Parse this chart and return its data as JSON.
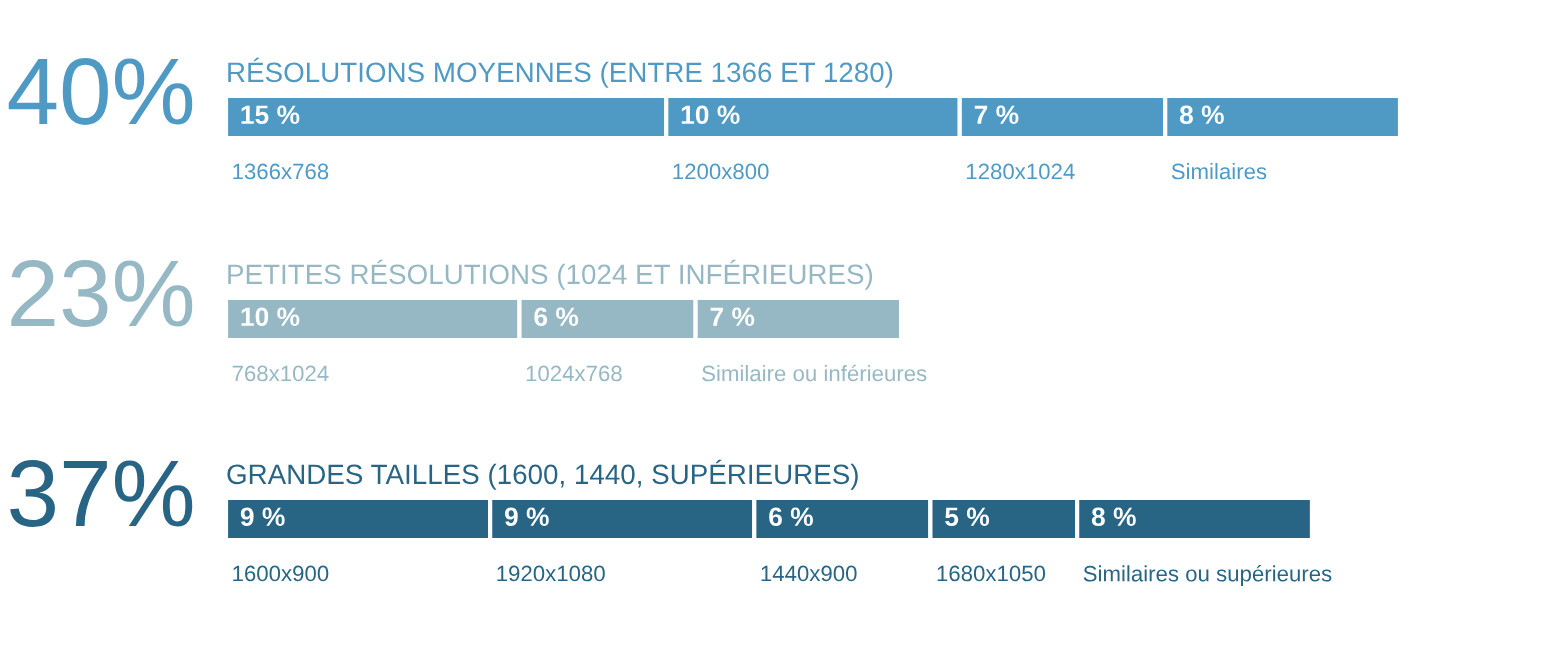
{
  "chart_data": [
    {
      "type": "bar",
      "orientation": "horizontal",
      "stacked": true,
      "title": "RÉSOLUTIONS MOYENNES (ENTRE 1366 ET 1280)",
      "annotations": [
        "40%"
      ],
      "categories": [
        null
      ],
      "legend": false,
      "series": [
        {
          "name": "1366x768",
          "color": "#4f9ac4",
          "values": [
            15
          ],
          "value_labels": [
            "15 %"
          ]
        },
        {
          "name": "1200x800",
          "color": "#4f9ac4",
          "values": [
            10
          ],
          "value_labels": [
            "10 %"
          ]
        },
        {
          "name": "1280x1024",
          "color": "#4f9ac4",
          "values": [
            7
          ],
          "value_labels": [
            "7 %"
          ]
        },
        {
          "name": "Similaires",
          "color": "#4f9ac4",
          "values": [
            8
          ],
          "value_labels": [
            "8 %"
          ]
        }
      ]
    },
    {
      "type": "bar",
      "orientation": "horizontal",
      "stacked": true,
      "title": "PETITES RÉSOLUTIONS (1024 ET INFÉRIEURES)",
      "annotations": [
        "23%"
      ],
      "categories": [
        null
      ],
      "legend": false,
      "series": [
        {
          "name": "768x1024",
          "color": "#96b8c4",
          "values": [
            10
          ],
          "value_labels": [
            "10 %"
          ]
        },
        {
          "name": "1024x768",
          "color": "#96b8c4",
          "values": [
            6
          ],
          "value_labels": [
            "6 %"
          ]
        },
        {
          "name": "Similaire ou inférieures",
          "color": "#96b8c4",
          "values": [
            7
          ],
          "value_labels": [
            "7 %"
          ]
        }
      ]
    },
    {
      "type": "bar",
      "orientation": "horizontal",
      "stacked": true,
      "title": "GRANDES TAILLES (1600, 1440, SUPÉRIEURES)",
      "annotations": [
        "37%"
      ],
      "categories": [
        null
      ],
      "legend": false,
      "series": [
        {
          "name": "1600x900",
          "color": "#286585",
          "values": [
            9
          ],
          "value_labels": [
            "9 %"
          ]
        },
        {
          "name": "1920x1080",
          "color": "#286585",
          "values": [
            9
          ],
          "value_labels": [
            "9 %"
          ]
        },
        {
          "name": "1440x900",
          "color": "#286585",
          "values": [
            6
          ],
          "value_labels": [
            "6 %"
          ]
        },
        {
          "name": "1680x1050",
          "color": "#286585",
          "values": [
            5
          ],
          "value_labels": [
            "5 %"
          ]
        },
        {
          "name": "Similaires ou supérieures",
          "color": "#286585",
          "values": [
            8
          ],
          "value_labels": [
            "8 %"
          ]
        }
      ]
    }
  ]
}
